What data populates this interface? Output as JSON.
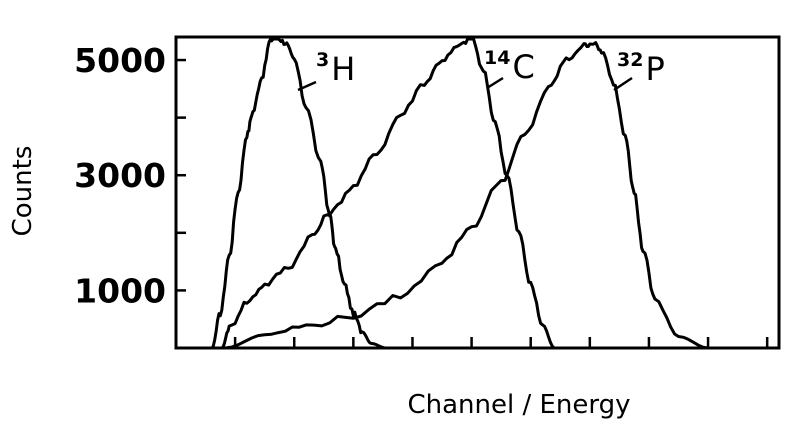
{
  "chart_data": {
    "type": "line",
    "title": "",
    "xlabel": "Channel / Energy",
    "ylabel": "Counts",
    "xlim": [
      0,
      10.2
    ],
    "ylim": [
      0,
      5400
    ],
    "grid": false,
    "legend": "inline labels next to each peak",
    "yticks_labeled": [
      1000,
      3000,
      5000
    ],
    "yticks_minor": [
      2000,
      4000
    ],
    "yticks_labels": [
      "1000",
      "3000",
      "5000"
    ],
    "xticks": [
      1,
      2,
      3,
      4,
      5,
      6,
      7,
      8,
      9,
      10
    ],
    "xtick_labels": [],
    "series": [
      {
        "name": "3H",
        "label_sup": "3",
        "label_main": "H",
        "x": [
          0.61,
          0.75,
          0.9,
          1.05,
          1.2,
          1.3,
          1.45,
          1.6,
          1.7,
          1.85,
          2.0,
          2.2,
          2.45,
          2.6,
          2.7,
          2.85,
          3.0,
          3.15,
          3.3,
          3.55
        ],
        "y": [
          0,
          600,
          1600,
          2700,
          3700,
          4100,
          4700,
          5350,
          5400,
          5300,
          5000,
          4200,
          3200,
          2300,
          1700,
          1100,
          600,
          280,
          80,
          0
        ]
      },
      {
        "name": "14C",
        "label_sup": "14",
        "label_main": "C",
        "x": [
          0.78,
          0.9,
          1.2,
          1.5,
          1.9,
          2.3,
          2.6,
          3.0,
          3.4,
          3.8,
          4.2,
          4.5,
          4.8,
          5.0,
          5.2,
          5.4,
          5.6,
          5.8,
          6.0,
          6.2,
          6.4
        ],
        "y": [
          0,
          350,
          800,
          1100,
          1400,
          1950,
          2350,
          2800,
          3400,
          4050,
          4600,
          5000,
          5250,
          5400,
          4800,
          3900,
          3000,
          2000,
          1100,
          400,
          0
        ]
      },
      {
        "name": "32P",
        "label_sup": "32",
        "label_main": "P",
        "x": [
          0.83,
          1.5,
          2.2,
          3.0,
          3.8,
          4.5,
          5.0,
          5.5,
          5.9,
          6.3,
          6.6,
          6.9,
          7.05,
          7.2,
          7.4,
          7.6,
          7.75,
          7.9,
          8.1,
          8.5,
          9.0
        ],
        "y": [
          0,
          230,
          380,
          550,
          900,
          1500,
          2100,
          2900,
          3700,
          4500,
          5000,
          5250,
          5300,
          5150,
          4600,
          3700,
          2700,
          1700,
          850,
          200,
          0
        ]
      }
    ]
  }
}
